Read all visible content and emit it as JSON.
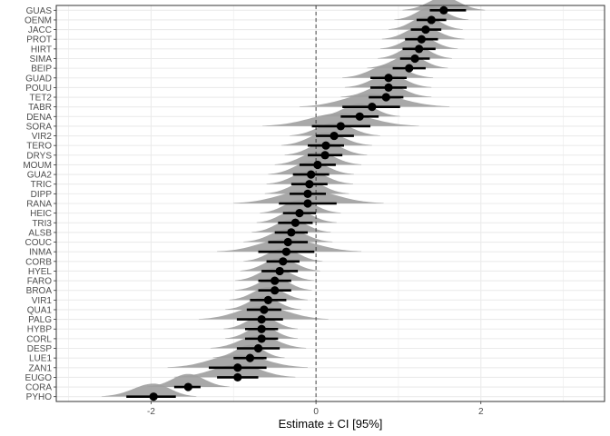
{
  "chart_data": {
    "type": "forest",
    "xlabel": "Estimate ± CI [95%]",
    "ylabel": "",
    "xlim": [
      -3.15,
      3.5
    ],
    "xticks": [
      -2,
      0,
      2
    ],
    "reference_line_x": 0,
    "grid": true,
    "colors": {
      "point": "#000000",
      "density": "#9e9e9e",
      "grid": "#ebebeb",
      "panel_border": "#333333"
    },
    "rows": [
      {
        "label": "GUAS",
        "est": 1.55,
        "lo": 1.38,
        "hi": 1.82,
        "dlo": 1.05,
        "dhi": 2.05
      },
      {
        "label": "OENM",
        "est": 1.4,
        "lo": 1.22,
        "hi": 1.58,
        "dlo": 0.95,
        "dhi": 1.85
      },
      {
        "label": "JACC",
        "est": 1.33,
        "lo": 1.15,
        "hi": 1.52,
        "dlo": 0.88,
        "dhi": 1.78
      },
      {
        "label": "PROT",
        "est": 1.28,
        "lo": 1.08,
        "hi": 1.48,
        "dlo": 0.8,
        "dhi": 1.8
      },
      {
        "label": "HIRT",
        "est": 1.25,
        "lo": 1.05,
        "hi": 1.45,
        "dlo": 0.78,
        "dhi": 1.72
      },
      {
        "label": "SIMA",
        "est": 1.2,
        "lo": 1.02,
        "hi": 1.38,
        "dlo": 0.75,
        "dhi": 1.65
      },
      {
        "label": "BEIP",
        "est": 1.13,
        "lo": 0.93,
        "hi": 1.33,
        "dlo": 0.62,
        "dhi": 1.6
      },
      {
        "label": "GUAD",
        "est": 0.88,
        "lo": 0.66,
        "hi": 1.1,
        "dlo": 0.32,
        "dhi": 1.42
      },
      {
        "label": "POUU",
        "est": 0.88,
        "lo": 0.66,
        "hi": 1.1,
        "dlo": 0.35,
        "dhi": 1.4
      },
      {
        "label": "TET2",
        "est": 0.85,
        "lo": 0.64,
        "hi": 1.06,
        "dlo": 0.3,
        "dhi": 1.4
      },
      {
        "label": "TABR",
        "est": 0.68,
        "lo": 0.32,
        "hi": 1.02,
        "dlo": -0.2,
        "dhi": 1.62
      },
      {
        "label": "DENA",
        "est": 0.53,
        "lo": 0.3,
        "hi": 0.76,
        "dlo": 0.02,
        "dhi": 1.02
      },
      {
        "label": "SORA",
        "est": 0.3,
        "lo": -0.05,
        "hi": 0.66,
        "dlo": -0.65,
        "dhi": 1.25
      },
      {
        "label": "VIR2",
        "est": 0.22,
        "lo": 0.0,
        "hi": 0.46,
        "dlo": -0.32,
        "dhi": 0.78
      },
      {
        "label": "TERO",
        "est": 0.12,
        "lo": -0.1,
        "hi": 0.34,
        "dlo": -0.42,
        "dhi": 0.68
      },
      {
        "label": "DRYS",
        "est": 0.11,
        "lo": -0.1,
        "hi": 0.32,
        "dlo": -0.38,
        "dhi": 0.62
      },
      {
        "label": "MOUM",
        "est": 0.02,
        "lo": -0.2,
        "hi": 0.24,
        "dlo": -0.5,
        "dhi": 0.55
      },
      {
        "label": "GUA2",
        "est": -0.06,
        "lo": -0.28,
        "hi": 0.16,
        "dlo": -0.58,
        "dhi": 0.46
      },
      {
        "label": "TRIC",
        "est": -0.08,
        "lo": -0.3,
        "hi": 0.14,
        "dlo": -0.6,
        "dhi": 0.45
      },
      {
        "label": "DIPP",
        "est": -0.1,
        "lo": -0.32,
        "hi": 0.12,
        "dlo": -0.62,
        "dhi": 0.4
      },
      {
        "label": "RANA",
        "est": -0.1,
        "lo": -0.45,
        "hi": 0.25,
        "dlo": -1.0,
        "dhi": 0.82
      },
      {
        "label": "HEIC",
        "est": -0.2,
        "lo": -0.4,
        "hi": 0.0,
        "dlo": -0.68,
        "dhi": 0.3
      },
      {
        "label": "TRI3",
        "est": -0.25,
        "lo": -0.46,
        "hi": -0.04,
        "dlo": -0.72,
        "dhi": 0.25
      },
      {
        "label": "ALSB",
        "est": -0.3,
        "lo": -0.5,
        "hi": -0.1,
        "dlo": -0.78,
        "dhi": 0.18
      },
      {
        "label": "COUC",
        "est": -0.34,
        "lo": -0.58,
        "hi": -0.1,
        "dlo": -0.88,
        "dhi": 0.2
      },
      {
        "label": "INMA",
        "est": -0.36,
        "lo": -0.7,
        "hi": -0.02,
        "dlo": -1.2,
        "dhi": 0.55
      },
      {
        "label": "CORB",
        "est": -0.4,
        "lo": -0.6,
        "hi": -0.2,
        "dlo": -0.88,
        "dhi": 0.08
      },
      {
        "label": "HYEL",
        "est": -0.44,
        "lo": -0.66,
        "hi": -0.22,
        "dlo": -0.92,
        "dhi": 0.05
      },
      {
        "label": "FARO",
        "est": -0.5,
        "lo": -0.7,
        "hi": -0.3,
        "dlo": -0.98,
        "dhi": -0.02
      },
      {
        "label": "BROA",
        "est": -0.5,
        "lo": -0.7,
        "hi": -0.3,
        "dlo": -0.98,
        "dhi": -0.05
      },
      {
        "label": "VIR1",
        "est": -0.58,
        "lo": -0.8,
        "hi": -0.36,
        "dlo": -1.05,
        "dhi": -0.1
      },
      {
        "label": "QUA1",
        "est": -0.63,
        "lo": -0.84,
        "hi": -0.42,
        "dlo": -1.1,
        "dhi": -0.18
      },
      {
        "label": "PALG",
        "est": -0.66,
        "lo": -0.96,
        "hi": -0.4,
        "dlo": -1.42,
        "dhi": 0.15
      },
      {
        "label": "HYBP",
        "est": -0.66,
        "lo": -0.86,
        "hi": -0.46,
        "dlo": -1.12,
        "dhi": -0.22
      },
      {
        "label": "CORL",
        "est": -0.66,
        "lo": -0.86,
        "hi": -0.46,
        "dlo": -1.1,
        "dhi": -0.22
      },
      {
        "label": "DESP",
        "est": -0.7,
        "lo": -0.96,
        "hi": -0.44,
        "dlo": -1.28,
        "dhi": -0.12
      },
      {
        "label": "LUE1",
        "est": -0.8,
        "lo": -1.0,
        "hi": -0.6,
        "dlo": -1.25,
        "dhi": -0.38
      },
      {
        "label": "ZAN1",
        "est": -0.95,
        "lo": -1.3,
        "hi": -0.6,
        "dlo": -1.8,
        "dhi": -0.1
      },
      {
        "label": "EUGO",
        "est": -0.95,
        "lo": -1.2,
        "hi": -0.7,
        "dlo": -1.72,
        "dhi": -0.25
      },
      {
        "label": "CORA",
        "est": -1.55,
        "lo": -1.72,
        "hi": -1.4,
        "dlo": -2.05,
        "dhi": -1.05
      },
      {
        "label": "PYHO",
        "est": -1.97,
        "lo": -2.3,
        "hi": -1.7,
        "dlo": -2.6,
        "dhi": -1.45
      }
    ]
  }
}
